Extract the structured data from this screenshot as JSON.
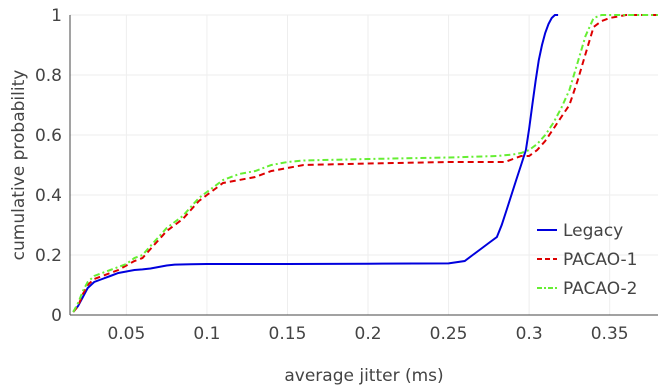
{
  "chart_data": {
    "type": "line",
    "title": "",
    "xlabel": "average jitter (ms)",
    "ylabel": "cumulative probability",
    "xlim": [
      0.015,
      0.38
    ],
    "ylim": [
      0,
      1
    ],
    "xticks": [
      0.05,
      0.1,
      0.15,
      0.2,
      0.25,
      0.3,
      0.35
    ],
    "xtick_labels": [
      "0.05",
      "0.1",
      "0.15",
      "0.2",
      "0.25",
      "0.3",
      "0.35"
    ],
    "yticks": [
      0,
      0.2,
      0.4,
      0.6,
      0.8,
      1
    ],
    "ytick_labels": [
      "0",
      "0.2",
      "0.4",
      "0.6",
      "0.8",
      "1"
    ],
    "grid": true,
    "legend_position": "bottom-right",
    "series": [
      {
        "name": "Legacy",
        "color": "#0000dd",
        "dash": "solid",
        "x": [
          0.017,
          0.02,
          0.023,
          0.026,
          0.03,
          0.035,
          0.04,
          0.045,
          0.05,
          0.055,
          0.06,
          0.065,
          0.07,
          0.075,
          0.08,
          0.09,
          0.1,
          0.15,
          0.2,
          0.25,
          0.26,
          0.265,
          0.27,
          0.275,
          0.28,
          0.283,
          0.286,
          0.289,
          0.292,
          0.295,
          0.298,
          0.3,
          0.302,
          0.304,
          0.306,
          0.308,
          0.31,
          0.312,
          0.314,
          0.316,
          0.318
        ],
        "y": [
          0.01,
          0.03,
          0.06,
          0.09,
          0.11,
          0.12,
          0.13,
          0.14,
          0.145,
          0.15,
          0.152,
          0.155,
          0.16,
          0.165,
          0.168,
          0.169,
          0.17,
          0.17,
          0.171,
          0.172,
          0.18,
          0.2,
          0.22,
          0.24,
          0.26,
          0.3,
          0.35,
          0.4,
          0.45,
          0.5,
          0.55,
          0.62,
          0.7,
          0.78,
          0.85,
          0.9,
          0.94,
          0.97,
          0.99,
          1.0,
          1.0
        ]
      },
      {
        "name": "PACAO-1",
        "color": "#dd0000",
        "dash": "dashed",
        "x": [
          0.017,
          0.02,
          0.023,
          0.026,
          0.03,
          0.035,
          0.04,
          0.045,
          0.05,
          0.055,
          0.06,
          0.065,
          0.07,
          0.075,
          0.08,
          0.085,
          0.09,
          0.095,
          0.1,
          0.105,
          0.11,
          0.12,
          0.13,
          0.14,
          0.15,
          0.16,
          0.2,
          0.25,
          0.285,
          0.29,
          0.295,
          0.3,
          0.305,
          0.31,
          0.315,
          0.32,
          0.325,
          0.33,
          0.335,
          0.34,
          0.345,
          0.35,
          0.36,
          0.38
        ],
        "y": [
          0.01,
          0.03,
          0.07,
          0.1,
          0.12,
          0.13,
          0.14,
          0.15,
          0.165,
          0.18,
          0.19,
          0.22,
          0.25,
          0.28,
          0.3,
          0.32,
          0.35,
          0.38,
          0.4,
          0.42,
          0.44,
          0.45,
          0.46,
          0.48,
          0.49,
          0.5,
          0.505,
          0.51,
          0.51,
          0.52,
          0.53,
          0.53,
          0.55,
          0.58,
          0.62,
          0.66,
          0.7,
          0.78,
          0.87,
          0.96,
          0.98,
          0.99,
          1.0,
          1.0
        ]
      },
      {
        "name": "PACAO-2",
        "color": "#66ee33",
        "dash": "dashdot",
        "x": [
          0.017,
          0.02,
          0.023,
          0.026,
          0.03,
          0.035,
          0.04,
          0.045,
          0.05,
          0.055,
          0.06,
          0.065,
          0.07,
          0.075,
          0.08,
          0.085,
          0.09,
          0.095,
          0.1,
          0.105,
          0.11,
          0.12,
          0.13,
          0.14,
          0.15,
          0.16,
          0.2,
          0.25,
          0.28,
          0.29,
          0.295,
          0.3,
          0.305,
          0.31,
          0.315,
          0.32,
          0.325,
          0.33,
          0.335,
          0.34,
          0.345,
          0.38
        ],
        "y": [
          0.01,
          0.04,
          0.08,
          0.11,
          0.13,
          0.14,
          0.15,
          0.16,
          0.17,
          0.19,
          0.2,
          0.23,
          0.26,
          0.29,
          0.31,
          0.33,
          0.36,
          0.39,
          0.41,
          0.43,
          0.45,
          0.47,
          0.48,
          0.5,
          0.51,
          0.515,
          0.52,
          0.525,
          0.53,
          0.535,
          0.54,
          0.55,
          0.57,
          0.6,
          0.64,
          0.69,
          0.75,
          0.84,
          0.93,
          0.99,
          1.0,
          1.0
        ]
      }
    ]
  }
}
